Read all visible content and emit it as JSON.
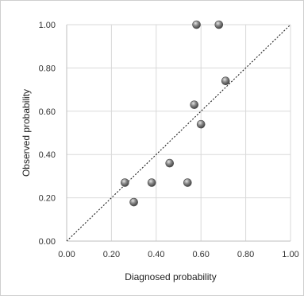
{
  "chart_data": {
    "type": "scatter",
    "title": "",
    "xlabel": "Diagnosed probability",
    "ylabel": "Observed probability",
    "xlim": [
      0,
      1
    ],
    "ylim": [
      0,
      1
    ],
    "x_ticks": [
      "0.00",
      "0.20",
      "0.40",
      "0.60",
      "0.80",
      "1.00"
    ],
    "y_ticks": [
      "0.00",
      "0.20",
      "0.40",
      "0.60",
      "0.80",
      "1.00"
    ],
    "grid": true,
    "reference_line": {
      "type": "identity",
      "style": "dotted"
    },
    "series": [
      {
        "marker_color": "#7a7a7a",
        "points": [
          {
            "x": 0.26,
            "y": 0.27
          },
          {
            "x": 0.3,
            "y": 0.18
          },
          {
            "x": 0.38,
            "y": 0.27
          },
          {
            "x": 0.46,
            "y": 0.36
          },
          {
            "x": 0.54,
            "y": 0.27
          },
          {
            "x": 0.57,
            "y": 0.63
          },
          {
            "x": 0.58,
            "y": 1.0
          },
          {
            "x": 0.6,
            "y": 0.54
          },
          {
            "x": 0.68,
            "y": 1.0
          },
          {
            "x": 0.71,
            "y": 0.74
          }
        ]
      }
    ]
  }
}
